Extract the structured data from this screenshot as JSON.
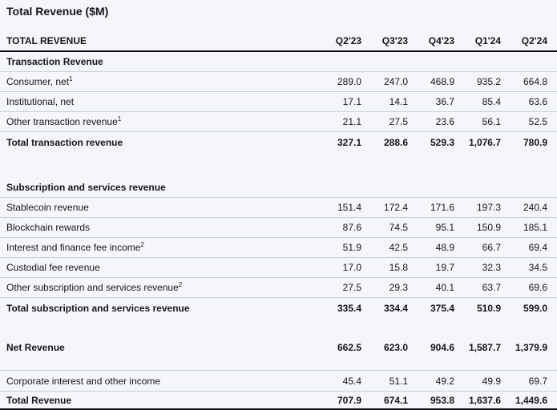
{
  "title": "Total Revenue ($M)",
  "colors": {
    "page_bg": "#f4f6fc",
    "row_separator": "#c8cedb",
    "strong_rule": "#0b0c0f",
    "text": "#15161a"
  },
  "chart_data": {
    "type": "table",
    "title": "Total Revenue ($M)",
    "header_label": "TOTAL REVENUE",
    "columns": [
      "Q2'23",
      "Q3'23",
      "Q4'23",
      "Q1'24",
      "Q2'24"
    ],
    "rows": [
      {
        "type": "section",
        "label": "Transaction Revenue",
        "values": [
          "",
          "",
          "",
          "",
          ""
        ],
        "border": true
      },
      {
        "type": "data",
        "label": "Consumer, net",
        "sup": "1",
        "values": [
          "289.0",
          "247.0",
          "468.9",
          "935.2",
          "664.8"
        ],
        "border": true
      },
      {
        "type": "data",
        "label": "Institutional, net",
        "values": [
          "17.1",
          "14.1",
          "36.7",
          "85.4",
          "63.6"
        ],
        "border": true
      },
      {
        "type": "data",
        "label": "Other transaction revenue",
        "sup": "1",
        "values": [
          "21.1",
          "27.5",
          "23.6",
          "56.1",
          "52.5"
        ],
        "border": true
      },
      {
        "type": "total",
        "label": "Total transaction revenue",
        "values": [
          "327.1",
          "288.6",
          "529.3",
          "1,076.7",
          "780.9"
        ],
        "border": false
      },
      {
        "type": "spacer",
        "height": 32,
        "border": false
      },
      {
        "type": "section",
        "label": "Subscription and services revenue",
        "values": [
          "",
          "",
          "",
          "",
          ""
        ],
        "border": true
      },
      {
        "type": "data",
        "label": "Stablecoin revenue",
        "values": [
          "151.4",
          "172.4",
          "171.6",
          "197.3",
          "240.4"
        ],
        "border": true
      },
      {
        "type": "data",
        "label": "Blockchain rewards",
        "values": [
          "87.6",
          "74.5",
          "95.1",
          "150.9",
          "185.1"
        ],
        "border": true
      },
      {
        "type": "data",
        "label": "Interest and finance fee income",
        "sup": "2",
        "values": [
          "51.9",
          "42.5",
          "48.9",
          "66.7",
          "69.4"
        ],
        "border": true
      },
      {
        "type": "data",
        "label": "Custodial fee revenue",
        "values": [
          "17.0",
          "15.8",
          "19.7",
          "32.3",
          "34.5"
        ],
        "border": true
      },
      {
        "type": "data",
        "label": "Other subscription and services revenue",
        "sup": "2",
        "values": [
          "27.5",
          "29.3",
          "40.1",
          "63.7",
          "69.6"
        ],
        "border": true
      },
      {
        "type": "total",
        "label": "Total subscription and services revenue",
        "values": [
          "335.4",
          "334.4",
          "375.4",
          "510.9",
          "599.0"
        ],
        "border": false
      },
      {
        "type": "spacer",
        "height": 24,
        "border": false
      },
      {
        "type": "total",
        "label": "Net Revenue",
        "values": [
          "662.5",
          "623.0",
          "904.6",
          "1,587.7",
          "1,379.9"
        ],
        "border": false
      },
      {
        "type": "spacer",
        "height": 17,
        "border": true
      },
      {
        "type": "data",
        "label": "Corporate interest and other income",
        "values": [
          "45.4",
          "51.1",
          "49.2",
          "49.9",
          "69.7"
        ],
        "border": true,
        "tall": true
      },
      {
        "type": "grand_total",
        "label": "Total Revenue",
        "values": [
          "707.9",
          "674.1",
          "953.8",
          "1,637.6",
          "1,449.6"
        ],
        "border": false
      }
    ]
  }
}
